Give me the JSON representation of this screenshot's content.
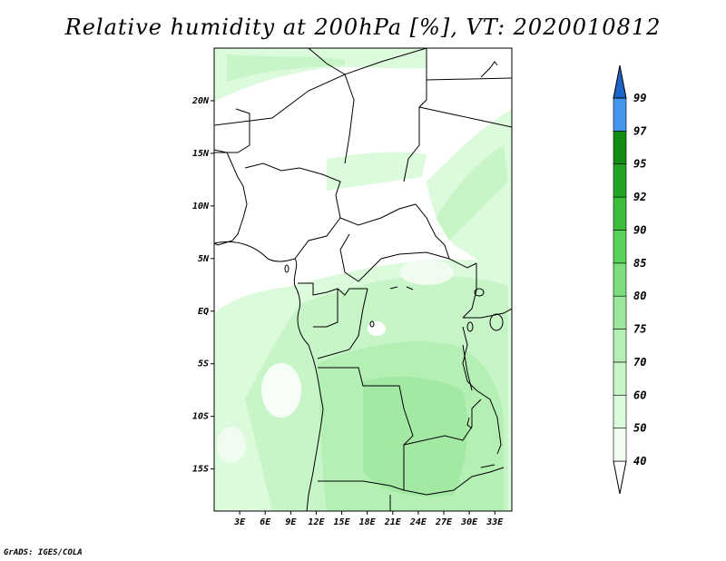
{
  "title": "Relative humidity at 200hPa [%], VT: 2020010812",
  "footer": "GrADS: IGES/COLA",
  "map": {
    "lat_range": [
      -19,
      25
    ],
    "lon_range": [
      0,
      35
    ],
    "lat_ticks": [
      {
        "value": 20,
        "label": "20N"
      },
      {
        "value": 15,
        "label": "15N"
      },
      {
        "value": 10,
        "label": "10N"
      },
      {
        "value": 5,
        "label": "5N"
      },
      {
        "value": 0,
        "label": "EQ"
      },
      {
        "value": -5,
        "label": "5S"
      },
      {
        "value": -10,
        "label": "10S"
      },
      {
        "value": -15,
        "label": "15S"
      }
    ],
    "lon_ticks": [
      {
        "value": 3,
        "label": "3E"
      },
      {
        "value": 6,
        "label": "6E"
      },
      {
        "value": 9,
        "label": "9E"
      },
      {
        "value": 12,
        "label": "12E"
      },
      {
        "value": 15,
        "label": "15E"
      },
      {
        "value": 18,
        "label": "18E"
      },
      {
        "value": 21,
        "label": "21E"
      },
      {
        "value": 24,
        "label": "24E"
      },
      {
        "value": 27,
        "label": "27E"
      },
      {
        "value": 30,
        "label": "30E"
      },
      {
        "value": 33,
        "label": "33E"
      }
    ]
  },
  "colorbar": {
    "levels": [
      {
        "label": "40",
        "color": "#f0fcf0"
      },
      {
        "label": "50",
        "color": "#dcfadc"
      },
      {
        "label": "60",
        "color": "#c8f5c8"
      },
      {
        "label": "70",
        "color": "#b4f0b4"
      },
      {
        "label": "75",
        "color": "#9be69b"
      },
      {
        "label": "80",
        "color": "#7ddc7d"
      },
      {
        "label": "85",
        "color": "#5ad25a"
      },
      {
        "label": "90",
        "color": "#3cbe3c"
      },
      {
        "label": "92",
        "color": "#23a523"
      },
      {
        "label": "95",
        "color": "#148c14"
      },
      {
        "label": "97",
        "color": "#4696f0"
      },
      {
        "label": "99",
        "color": "#2878dc"
      }
    ],
    "top_color": "#1e64c8"
  }
}
